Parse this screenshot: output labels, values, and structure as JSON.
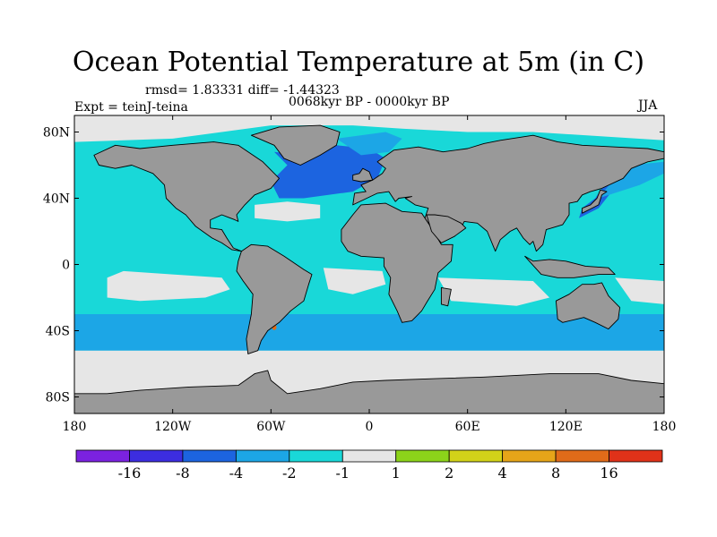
{
  "header": {
    "title": "Ocean Potential Temperature at 5m (in C)",
    "stats": "rmsd= 1.83331 diff= -1.44323",
    "periods": "0068kyr BP - 0000kyr BP",
    "expt": "Expt = teinJ-teina",
    "season": "JJA"
  },
  "chart_data": {
    "type": "heatmap",
    "title": "Ocean Potential Temperature at 5m (in C)",
    "subtitle": "0068kyr BP - 0000kyr BP",
    "variable_unit": "C",
    "x_ticks": [
      {
        "value": -180,
        "label": "180"
      },
      {
        "value": -120,
        "label": "120W"
      },
      {
        "value": -60,
        "label": "60W"
      },
      {
        "value": 0,
        "label": "0"
      },
      {
        "value": 60,
        "label": "60E"
      },
      {
        "value": 120,
        "label": "120E"
      },
      {
        "value": 180,
        "label": "180"
      }
    ],
    "y_ticks": [
      {
        "value": 80,
        "label": "80N"
      },
      {
        "value": 40,
        "label": "40N"
      },
      {
        "value": 0,
        "label": "0"
      },
      {
        "value": -40,
        "label": "40S"
      },
      {
        "value": -80,
        "label": "80S"
      }
    ],
    "xlim": [
      -180,
      180
    ],
    "ylim": [
      -90,
      90
    ],
    "colorbar": {
      "colors": [
        "#7b22e0",
        "#3c2de0",
        "#1c64e0",
        "#1ca6e6",
        "#19d8d8",
        "#e6e6e6",
        "#8cd31a",
        "#d2d219",
        "#e6a519",
        "#e06b19",
        "#e03219"
      ],
      "tick_labels": [
        "-16",
        "-8",
        "-4",
        "-2",
        "-1",
        "1",
        "2",
        "4",
        "8",
        "16"
      ]
    },
    "colors": {
      "land": "#999999",
      "ocean_base": "#19d8d8",
      "near_zero": "#e6e6e6",
      "cool_moderate": "#1ca6e6",
      "cool_strong": "#1c64e0",
      "warm_small": "#8cd31a",
      "warm_moderate": "#d2d219",
      "warm_strong": "#e06b19"
    }
  }
}
